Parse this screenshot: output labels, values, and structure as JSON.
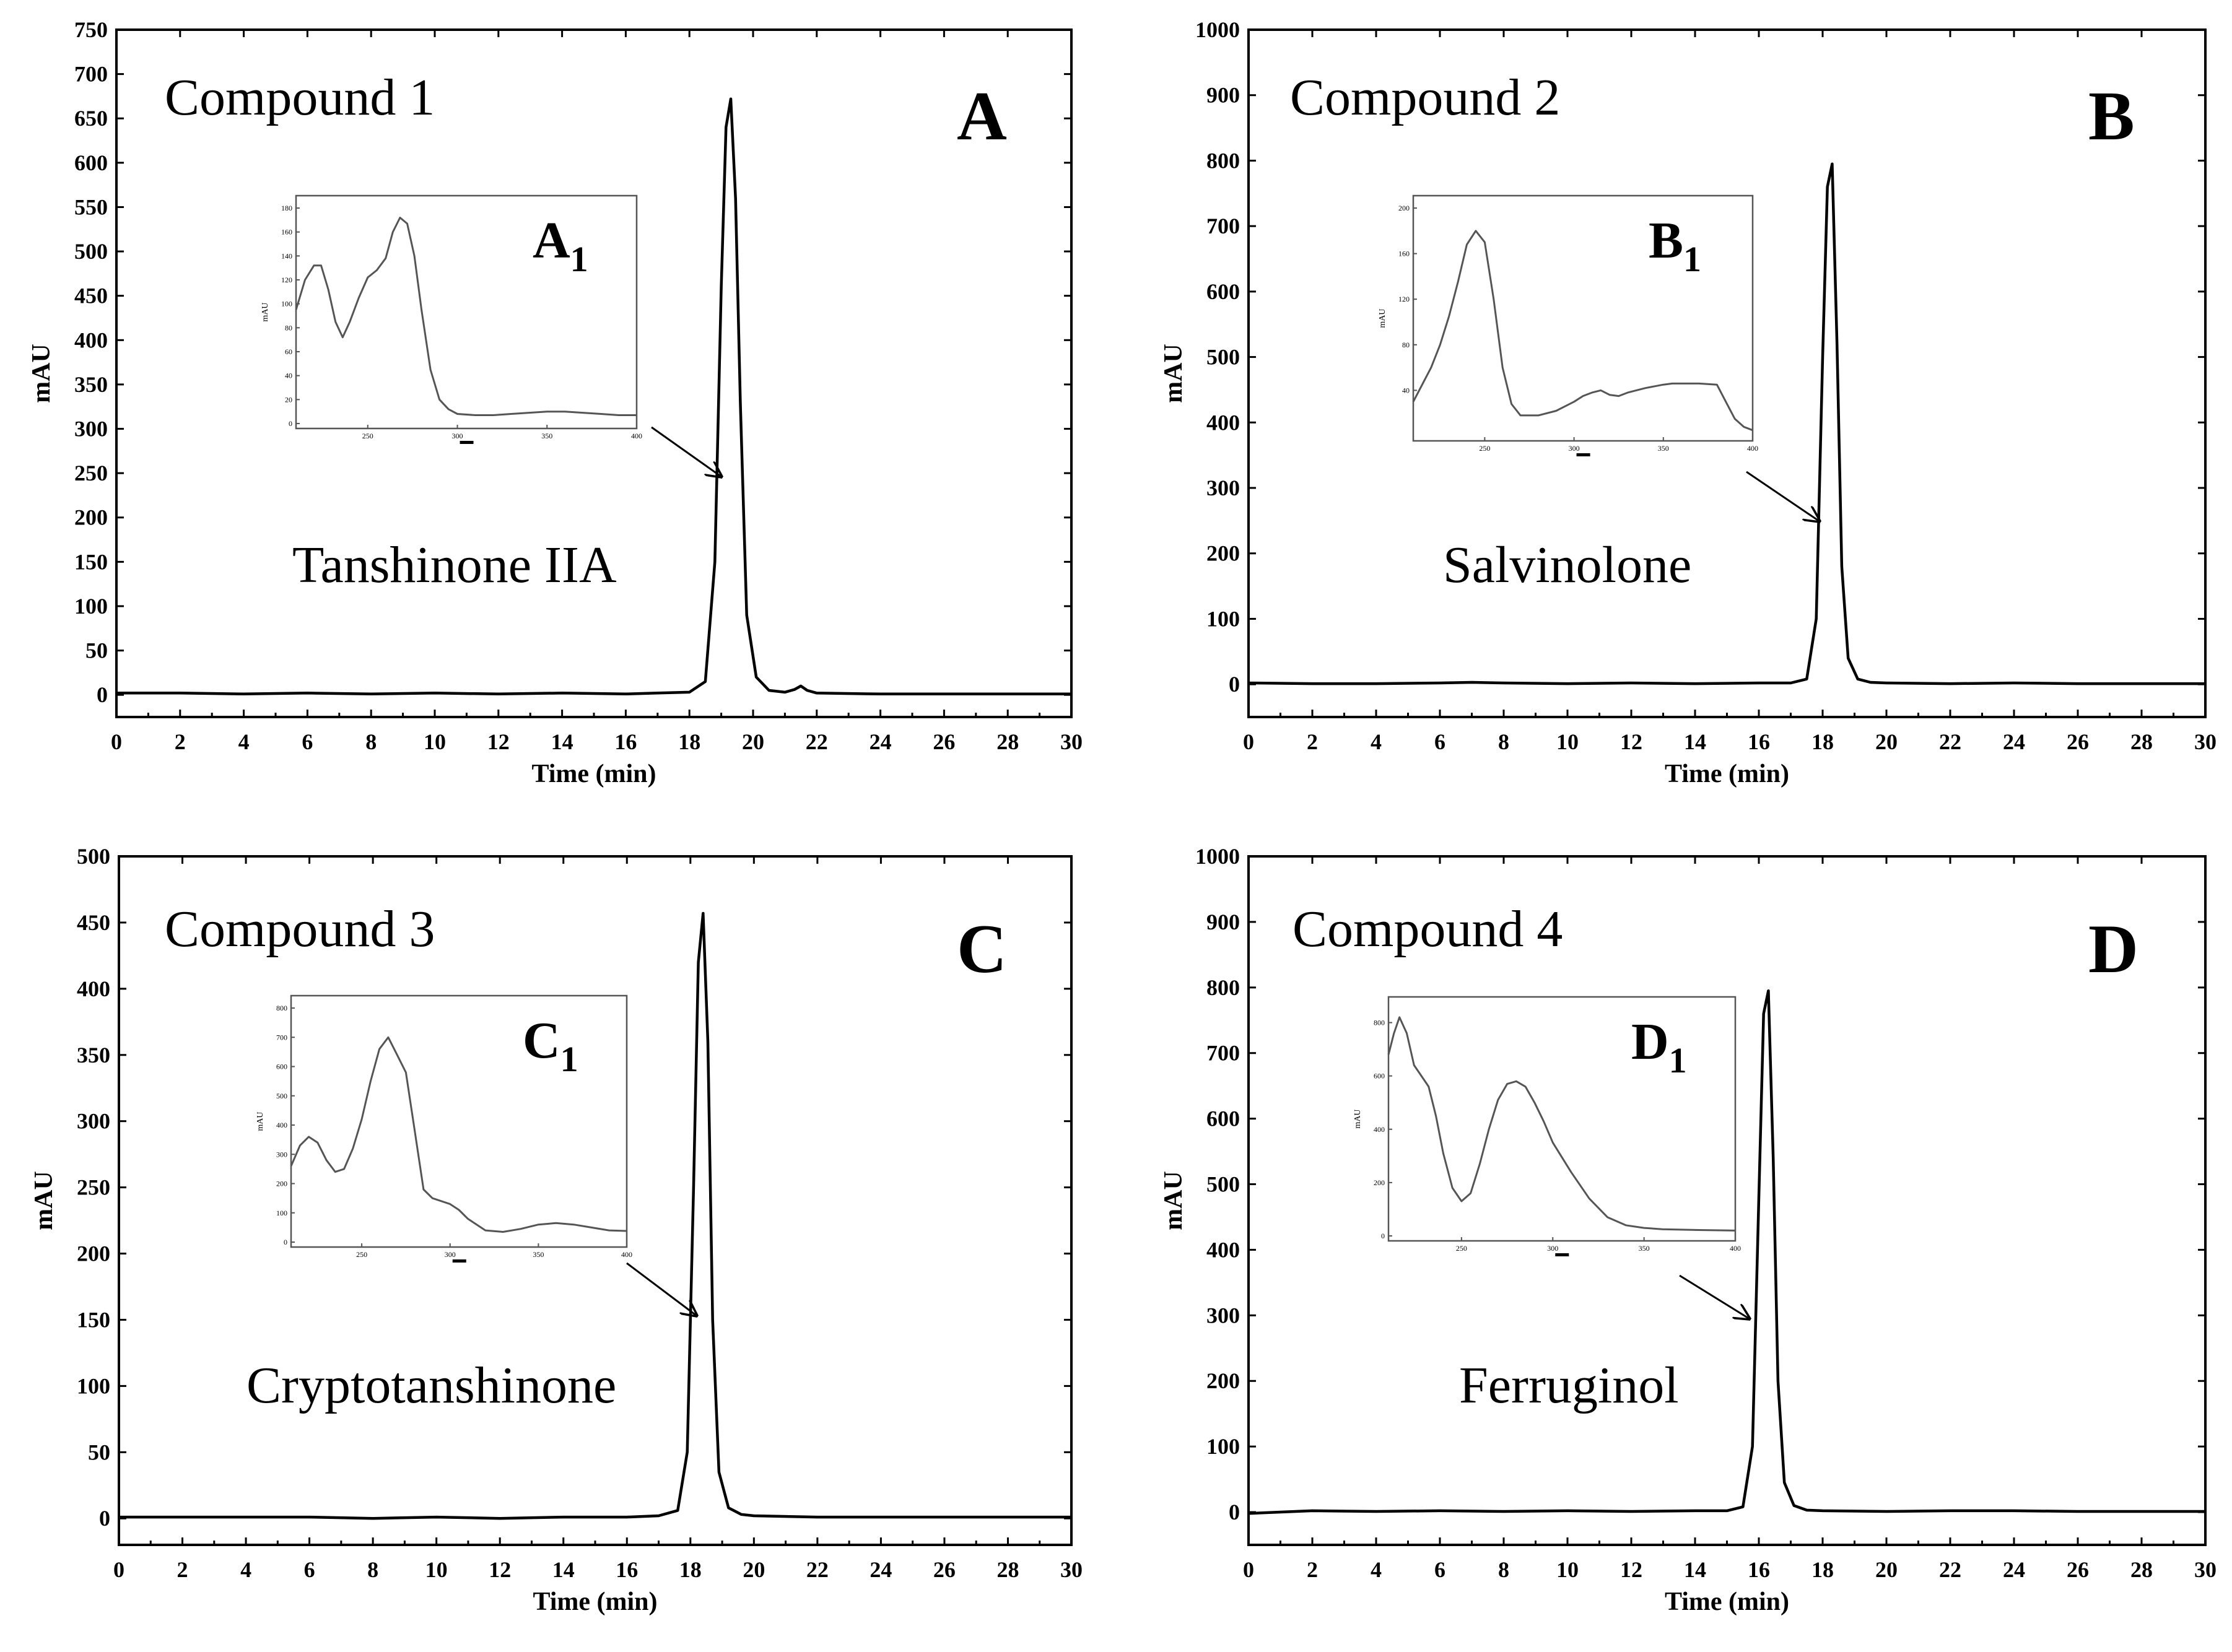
{
  "chart_data": [
    {
      "type": "line",
      "panel": "A",
      "compound_label": "Compound 1",
      "peak_label": "Tanshinone IIA",
      "xlabel": "Time (min)",
      "ylabel": "mAU",
      "xlim": [
        0,
        30
      ],
      "ylim": [
        -25,
        750
      ],
      "x_ticks": [
        0,
        2,
        4,
        6,
        8,
        10,
        12,
        14,
        16,
        18,
        20,
        22,
        24,
        26,
        28,
        30
      ],
      "y_ticks": [
        0,
        50,
        100,
        150,
        200,
        250,
        300,
        350,
        400,
        450,
        500,
        550,
        600,
        650,
        700,
        750
      ],
      "series": [
        {
          "name": "chromatogram",
          "x": [
            0,
            2,
            4,
            6,
            8,
            10,
            12,
            14,
            16,
            17,
            18,
            18.5,
            18.8,
            19.0,
            19.15,
            19.3,
            19.45,
            19.6,
            19.8,
            20.1,
            20.5,
            21.0,
            21.3,
            21.5,
            21.7,
            22.0,
            24,
            26,
            28,
            30
          ],
          "y": [
            2,
            2,
            1,
            2,
            1,
            2,
            1,
            2,
            1,
            2,
            3,
            15,
            150,
            460,
            640,
            672,
            560,
            330,
            90,
            20,
            5,
            3,
            6,
            10,
            5,
            2,
            1,
            1,
            1,
            1
          ]
        }
      ],
      "inset": {
        "label": "A",
        "subscript": "1",
        "ylabel": "mAU",
        "xlim": [
          210,
          400
        ],
        "ylim": [
          0,
          180
        ],
        "x_ticks": [
          250,
          300,
          350,
          400
        ],
        "y_ticks": [
          0,
          20,
          40,
          60,
          80,
          100,
          120,
          140,
          160,
          180
        ],
        "x": [
          210,
          215,
          220,
          224,
          228,
          232,
          236,
          240,
          245,
          250,
          255,
          260,
          264,
          268,
          272,
          276,
          280,
          285,
          290,
          295,
          300,
          310,
          320,
          330,
          340,
          350,
          360,
          370,
          380,
          390,
          400
        ],
        "y": [
          95,
          120,
          132,
          132,
          112,
          85,
          72,
          85,
          105,
          122,
          128,
          138,
          160,
          172,
          167,
          140,
          95,
          45,
          20,
          12,
          8,
          7,
          7,
          8,
          9,
          10,
          10,
          9,
          8,
          7,
          7
        ]
      }
    },
    {
      "type": "line",
      "panel": "B",
      "compound_label": "Compound 2",
      "peak_label": "Salvinolone",
      "xlabel": "Time (min)",
      "ylabel": "mAU",
      "xlim": [
        0,
        30
      ],
      "ylim": [
        -50,
        1000
      ],
      "x_ticks": [
        0,
        2,
        4,
        6,
        8,
        10,
        12,
        14,
        16,
        18,
        20,
        22,
        24,
        26,
        28,
        30
      ],
      "y_ticks": [
        0,
        100,
        200,
        300,
        400,
        500,
        600,
        700,
        800,
        900,
        1000
      ],
      "series": [
        {
          "name": "chromatogram",
          "x": [
            0,
            2,
            4,
            6,
            7,
            8,
            10,
            12,
            14,
            16,
            17,
            17.5,
            17.8,
            18.0,
            18.15,
            18.3,
            18.45,
            18.6,
            18.8,
            19.1,
            19.5,
            20,
            22,
            24,
            26,
            28,
            30
          ],
          "y": [
            2,
            1,
            1,
            2,
            3,
            2,
            1,
            2,
            1,
            2,
            2,
            8,
            100,
            500,
            760,
            795,
            520,
            180,
            40,
            8,
            3,
            2,
            1,
            2,
            1,
            1,
            1
          ]
        }
      ],
      "inset": {
        "label": "B",
        "subscript": "1",
        "ylabel": "mAU",
        "xlim": [
          210,
          400
        ],
        "ylim": [
          0,
          200
        ],
        "x_ticks": [
          250,
          300,
          350,
          400
        ],
        "y_ticks": [
          40,
          80,
          120,
          160,
          200
        ],
        "x": [
          210,
          215,
          220,
          225,
          230,
          235,
          240,
          245,
          250,
          255,
          260,
          265,
          270,
          280,
          290,
          300,
          305,
          310,
          315,
          320,
          325,
          330,
          340,
          350,
          355,
          360,
          370,
          380,
          385,
          390,
          395,
          400
        ],
        "y": [
          30,
          45,
          60,
          80,
          105,
          135,
          168,
          180,
          170,
          120,
          60,
          28,
          18,
          18,
          22,
          30,
          35,
          38,
          40,
          36,
          35,
          38,
          42,
          45,
          46,
          46,
          46,
          45,
          30,
          15,
          8,
          5
        ]
      }
    },
    {
      "type": "line",
      "panel": "C",
      "compound_label": "Compound 3",
      "peak_label": "Cryptotanshinone",
      "xlabel": "Time (min)",
      "ylabel": "mAU",
      "xlim": [
        0,
        30
      ],
      "ylim": [
        -20,
        500
      ],
      "x_ticks": [
        0,
        2,
        4,
        6,
        8,
        10,
        12,
        14,
        16,
        18,
        20,
        22,
        24,
        26,
        28,
        30
      ],
      "y_ticks": [
        0,
        50,
        100,
        150,
        200,
        250,
        300,
        350,
        400,
        450,
        500
      ],
      "series": [
        {
          "name": "chromatogram",
          "x": [
            0,
            2,
            4,
            6,
            8,
            10,
            12,
            14,
            16,
            17,
            17.6,
            17.9,
            18.1,
            18.25,
            18.4,
            18.55,
            18.7,
            18.9,
            19.2,
            19.6,
            20,
            22,
            24,
            26,
            28,
            30
          ],
          "y": [
            1,
            1,
            1,
            1,
            0,
            1,
            0,
            1,
            1,
            2,
            6,
            50,
            250,
            420,
            457,
            360,
            150,
            35,
            8,
            3,
            2,
            1,
            1,
            1,
            1,
            1
          ]
        }
      ],
      "inset": {
        "label": "C",
        "subscript": "1",
        "ylabel": "mAU",
        "xlim": [
          210,
          400
        ],
        "ylim": [
          0,
          800
        ],
        "x_ticks": [
          250,
          300,
          350,
          400
        ],
        "y_ticks": [
          0,
          100,
          200,
          300,
          400,
          500,
          600,
          700,
          800
        ],
        "x": [
          210,
          215,
          220,
          225,
          230,
          235,
          240,
          245,
          250,
          255,
          260,
          265,
          270,
          275,
          280,
          285,
          290,
          295,
          300,
          305,
          310,
          320,
          330,
          340,
          350,
          360,
          370,
          380,
          390,
          400
        ],
        "y": [
          260,
          330,
          360,
          340,
          280,
          240,
          250,
          320,
          420,
          550,
          660,
          700,
          640,
          580,
          380,
          180,
          150,
          140,
          130,
          110,
          80,
          40,
          35,
          45,
          60,
          65,
          60,
          50,
          40,
          38
        ]
      }
    },
    {
      "type": "line",
      "panel": "D",
      "compound_label": "Compound 4",
      "peak_label": "Ferruginol",
      "xlabel": "Time (min)",
      "ylabel": "mAU",
      "xlim": [
        0,
        30
      ],
      "ylim": [
        -50,
        1000
      ],
      "x_ticks": [
        0,
        2,
        4,
        6,
        8,
        10,
        12,
        14,
        16,
        18,
        20,
        22,
        24,
        26,
        28,
        30
      ],
      "y_ticks": [
        0,
        100,
        200,
        300,
        400,
        500,
        600,
        700,
        800,
        900,
        1000
      ],
      "series": [
        {
          "name": "chromatogram",
          "x": [
            0,
            2,
            4,
            6,
            8,
            10,
            12,
            14,
            15,
            15.5,
            15.8,
            16.0,
            16.15,
            16.3,
            16.45,
            16.6,
            16.8,
            17.1,
            17.5,
            18,
            20,
            22,
            24,
            26,
            28,
            30
          ],
          "y": [
            -2,
            2,
            1,
            2,
            1,
            2,
            1,
            2,
            2,
            8,
            100,
            480,
            760,
            795,
            540,
            200,
            45,
            10,
            3,
            2,
            1,
            2,
            2,
            1,
            1,
            1
          ]
        }
      ],
      "inset": {
        "label": "D",
        "subscript": "1",
        "ylabel": "mAU",
        "xlim": [
          210,
          400
        ],
        "ylim": [
          0,
          850
        ],
        "x_ticks": [
          250,
          300,
          350,
          400
        ],
        "y_ticks": [
          0,
          200,
          400,
          600,
          800
        ],
        "x": [
          210,
          213,
          216,
          220,
          224,
          228,
          232,
          236,
          240,
          245,
          250,
          255,
          260,
          265,
          270,
          275,
          280,
          285,
          290,
          295,
          300,
          310,
          320,
          330,
          340,
          350,
          360,
          380,
          400
        ],
        "y": [
          680,
          760,
          820,
          760,
          640,
          600,
          560,
          450,
          310,
          180,
          130,
          160,
          270,
          400,
          510,
          570,
          580,
          560,
          500,
          430,
          350,
          240,
          140,
          70,
          40,
          30,
          25,
          22,
          20
        ]
      }
    }
  ]
}
